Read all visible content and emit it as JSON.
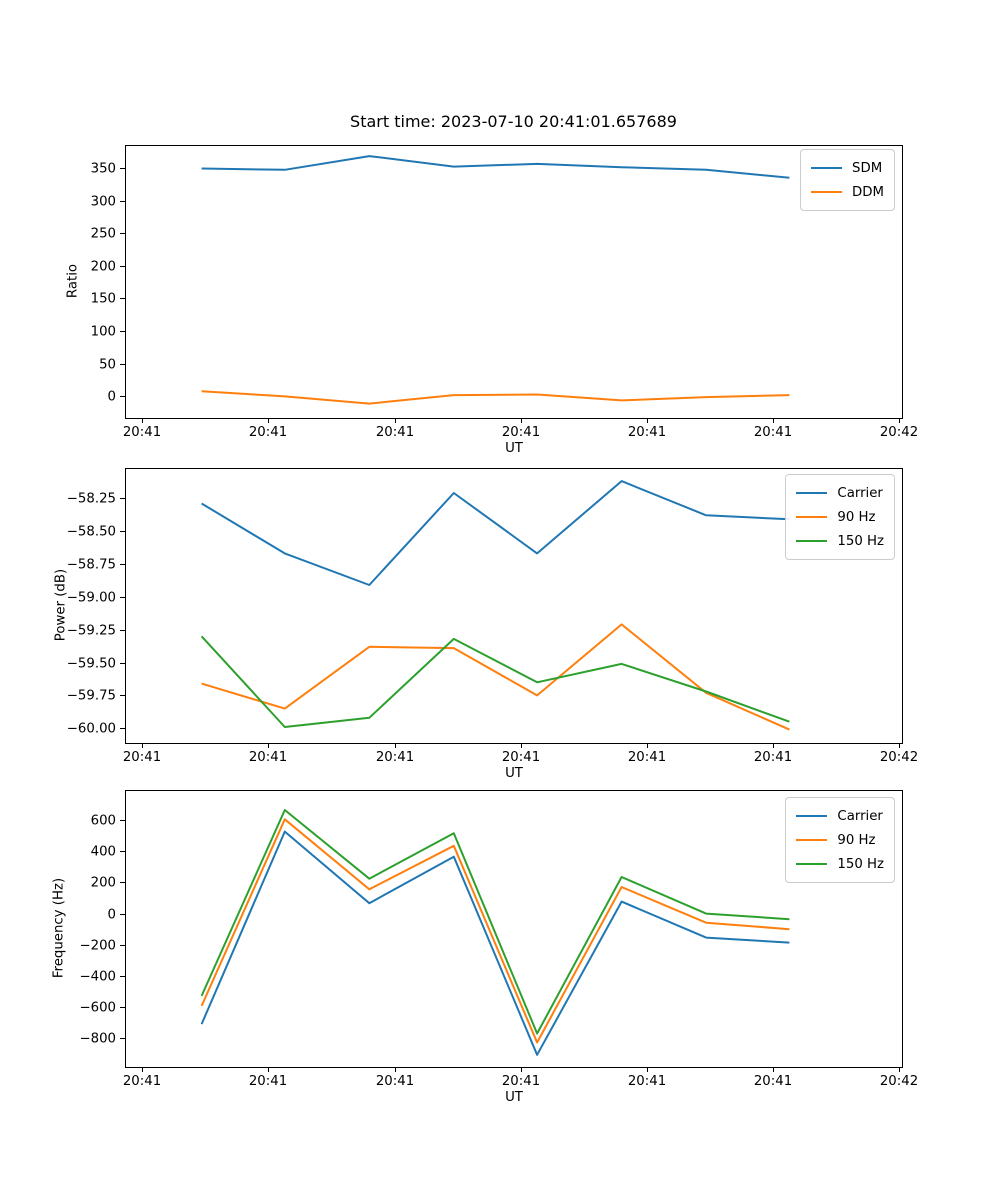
{
  "figure": {
    "title": "Start time: 2023-07-10 20:41:01.657689",
    "background": "#ffffff",
    "frame_color": "#000000",
    "palette": {
      "blue": "#1f77b4",
      "orange": "#ff7f0e",
      "green": "#2ca02c"
    }
  },
  "chart_data": [
    {
      "type": "line",
      "title": "",
      "xlabel": "UT",
      "ylabel": "Ratio",
      "grid": false,
      "legend_position": "upper right",
      "x_tick_labels": [
        "20:41",
        "20:41",
        "20:41",
        "20:41",
        "20:41",
        "20:41",
        "20:42"
      ],
      "x_tick_seconds": [
        0,
        10,
        20,
        30,
        40,
        50,
        60
      ],
      "xlim_seconds": [
        -1.37,
        60.23
      ],
      "y_tick_labels": [
        "0",
        "50",
        "100",
        "150",
        "200",
        "250",
        "300",
        "350"
      ],
      "y_tick_values": [
        0,
        50,
        100,
        150,
        200,
        250,
        300,
        350
      ],
      "ylim": [
        -33,
        385
      ],
      "x_seconds": [
        4.7,
        11.3,
        18.0,
        24.7,
        31.3,
        38.0,
        44.7,
        51.3
      ],
      "series": [
        {
          "name": "SDM",
          "color": "#1f77b4",
          "values": [
            349,
            347,
            368,
            352,
            356,
            351,
            347,
            335
          ]
        },
        {
          "name": "DDM",
          "color": "#ff7f0e",
          "values": [
            8,
            0,
            -11,
            2,
            3,
            -6,
            -1,
            2
          ]
        }
      ]
    },
    {
      "type": "line",
      "title": "",
      "xlabel": "UT",
      "ylabel": "Power (dB)",
      "grid": false,
      "legend_position": "upper right",
      "x_tick_labels": [
        "20:41",
        "20:41",
        "20:41",
        "20:41",
        "20:41",
        "20:41",
        "20:42"
      ],
      "x_tick_seconds": [
        0,
        10,
        20,
        30,
        40,
        50,
        60
      ],
      "xlim_seconds": [
        -1.37,
        60.23
      ],
      "y_tick_labels": [
        "−60.00",
        "−59.75",
        "−59.50",
        "−59.25",
        "−59.00",
        "−58.75",
        "−58.50",
        "−58.25"
      ],
      "y_tick_values": [
        -60.0,
        -59.75,
        -59.5,
        -59.25,
        -59.0,
        -58.75,
        -58.5,
        -58.25
      ],
      "ylim": [
        -60.112,
        -58.02
      ],
      "x_seconds": [
        4.7,
        11.3,
        18.0,
        24.7,
        31.3,
        38.0,
        44.7,
        51.3
      ],
      "series": [
        {
          "name": "Carrier",
          "color": "#1f77b4",
          "values": [
            -58.29,
            -58.67,
            -58.91,
            -58.21,
            -58.67,
            -58.12,
            -58.38,
            -58.41
          ]
        },
        {
          "name": "90 Hz",
          "color": "#ff7f0e",
          "values": [
            -59.66,
            -59.85,
            -59.38,
            -59.39,
            -59.75,
            -59.21,
            -59.73,
            -60.01
          ]
        },
        {
          "name": "150 Hz",
          "color": "#2ca02c",
          "values": [
            -59.3,
            -59.99,
            -59.92,
            -59.32,
            -59.65,
            -59.51,
            -59.72,
            -59.95
          ]
        }
      ]
    },
    {
      "type": "line",
      "title": "",
      "xlabel": "UT",
      "ylabel": "Frequency (Hz)",
      "grid": false,
      "legend_position": "upper right",
      "x_tick_labels": [
        "20:41",
        "20:41",
        "20:41",
        "20:41",
        "20:41",
        "20:41",
        "20:42"
      ],
      "x_tick_seconds": [
        0,
        10,
        20,
        30,
        40,
        50,
        60
      ],
      "xlim_seconds": [
        -1.37,
        60.23
      ],
      "y_tick_labels": [
        "−800",
        "−600",
        "−400",
        "−200",
        "0",
        "200",
        "400",
        "600"
      ],
      "y_tick_values": [
        -800,
        -600,
        -400,
        -200,
        0,
        200,
        400,
        600
      ],
      "ylim": [
        -984,
        793
      ],
      "x_seconds": [
        4.7,
        11.3,
        18.0,
        24.7,
        31.3,
        38.0,
        44.7,
        51.3
      ],
      "series": [
        {
          "name": "Carrier",
          "color": "#1f77b4",
          "values": [
            -709,
            526,
            67,
            365,
            -906,
            77,
            -154,
            -186
          ]
        },
        {
          "name": "90 Hz",
          "color": "#ff7f0e",
          "values": [
            -592,
            605,
            156,
            435,
            -827,
            171,
            -58,
            -100
          ]
        },
        {
          "name": "150 Hz",
          "color": "#2ca02c",
          "values": [
            -528,
            665,
            224,
            515,
            -769,
            235,
            0,
            -36
          ]
        }
      ]
    }
  ]
}
